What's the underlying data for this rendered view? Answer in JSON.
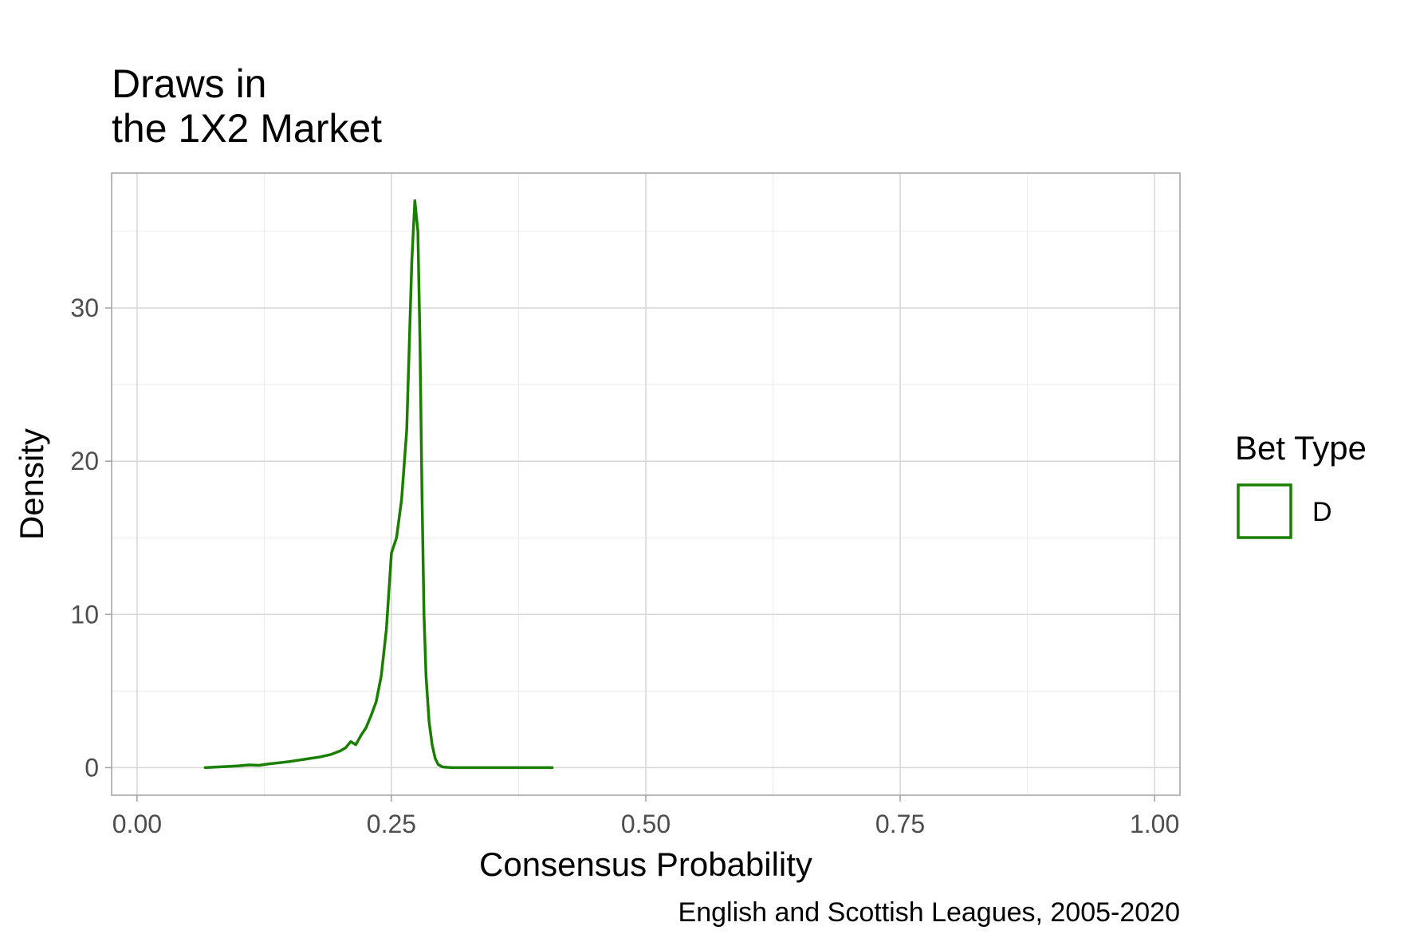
{
  "chart_data": {
    "type": "line",
    "title": "Draws in\nthe 1X2 Market",
    "xlabel": "Consensus Probability",
    "ylabel": "Density",
    "caption": "English and Scottish Leagues, 2005-2020",
    "xlim": [
      -0.025,
      1.025
    ],
    "ylim": [
      -1.8,
      38.8
    ],
    "x_ticks": [
      0,
      0.25,
      0.5,
      0.75,
      1
    ],
    "x_tick_labels": [
      "0.00",
      "0.25",
      "0.50",
      "0.75",
      "1.00"
    ],
    "y_ticks": [
      0,
      10,
      20,
      30
    ],
    "y_tick_labels": [
      "0",
      "10",
      "20",
      "30"
    ],
    "grid": true,
    "legend": {
      "title": "Bet Type",
      "position": "right"
    },
    "series": [
      {
        "name": "D",
        "color": "#1a7f00",
        "x": [
          0.067,
          0.08,
          0.09,
          0.1,
          0.11,
          0.12,
          0.13,
          0.14,
          0.15,
          0.16,
          0.17,
          0.18,
          0.19,
          0.2,
          0.205,
          0.21,
          0.215,
          0.22,
          0.225,
          0.23,
          0.235,
          0.24,
          0.245,
          0.25,
          0.255,
          0.26,
          0.265,
          0.27,
          0.273,
          0.276,
          0.278,
          0.28,
          0.282,
          0.284,
          0.287,
          0.29,
          0.293,
          0.296,
          0.3,
          0.305,
          0.31,
          0.315,
          0.32,
          0.33,
          0.35,
          0.37,
          0.39,
          0.408
        ],
        "y": [
          0,
          0.05,
          0.08,
          0.12,
          0.18,
          0.15,
          0.25,
          0.32,
          0.4,
          0.5,
          0.6,
          0.7,
          0.85,
          1.1,
          1.3,
          1.7,
          1.5,
          2.1,
          2.6,
          3.4,
          4.3,
          6.0,
          9.0,
          14.0,
          15.0,
          17.5,
          22.0,
          33.0,
          37.0,
          35.0,
          28.0,
          18.0,
          10.0,
          6.0,
          3.0,
          1.5,
          0.6,
          0.2,
          0.05,
          0.02,
          0,
          0,
          0,
          0,
          0,
          0,
          0,
          0
        ]
      }
    ]
  }
}
